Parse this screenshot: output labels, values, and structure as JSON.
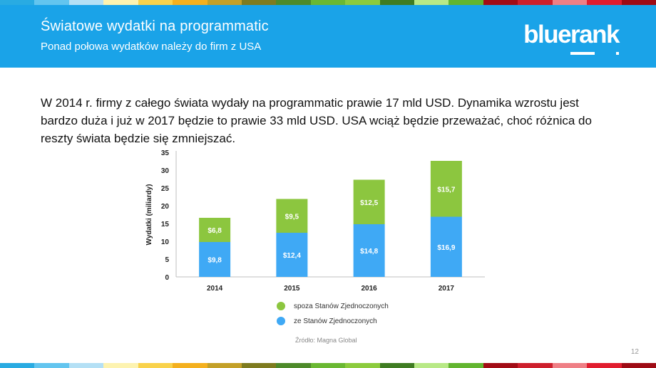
{
  "slide": {
    "title": "Światowe wydatki na programmatic",
    "subtitle": "Ponad połowa wydatków należy do firm z USA",
    "logo": "bluerank",
    "body": "W 2014 r. firmy z całego świata wydały na programmatic prawie 17 mld USD. Dynamika wzrostu jest bardzo duża i już w 2017 będzie to prawie 33 mld USD.  USA wciąż będzie przeważać, choć różnica do reszty świata będzie się zmniejszać.",
    "source": "Źródło: Magna Global",
    "page_number": "12"
  },
  "colors": {
    "header_bg": "#1aa3e8",
    "green": "#8cc63f",
    "blue": "#3fa9f5",
    "stripes": [
      "#29abe2",
      "#63c5ef",
      "#b4e0f5",
      "#fdf3b0",
      "#f9d24b",
      "#f4b01e",
      "#c3a028",
      "#7e7b1f",
      "#4d8a2a",
      "#6ab832",
      "#8ccb3d",
      "#3f7c22",
      "#b8e986",
      "#62b52f",
      "#a20c15",
      "#cd1f2c",
      "#ef7f85",
      "#e11d2e",
      "#9e0b14"
    ]
  },
  "chart_data": {
    "type": "bar",
    "stacked": true,
    "categories": [
      "2014",
      "2015",
      "2016",
      "2017"
    ],
    "series": [
      {
        "name": "ze Stanów Zjednoczonych",
        "values": [
          9.8,
          12.4,
          14.8,
          16.9
        ],
        "labels": [
          "$9,8",
          "$12,4",
          "$14,8",
          "$16,9"
        ],
        "color": "#3fa9f5"
      },
      {
        "name": "spoza Stanów Zjednoczonych",
        "values": [
          6.8,
          9.5,
          12.5,
          15.7
        ],
        "labels": [
          "$6,8",
          "$9,5",
          "$12,5",
          "$15,7"
        ],
        "color": "#8cc63f"
      }
    ],
    "ylabel": "Wydatki (miliardy)",
    "xlabel": "",
    "ylim": [
      0,
      35
    ],
    "yticks": [
      0,
      5,
      10,
      15,
      20,
      25,
      30,
      35
    ],
    "legend": [
      "spoza Stanów Zjednoczonych",
      "ze Stanów Zjednoczonych"
    ],
    "legend_position": "bottom"
  }
}
